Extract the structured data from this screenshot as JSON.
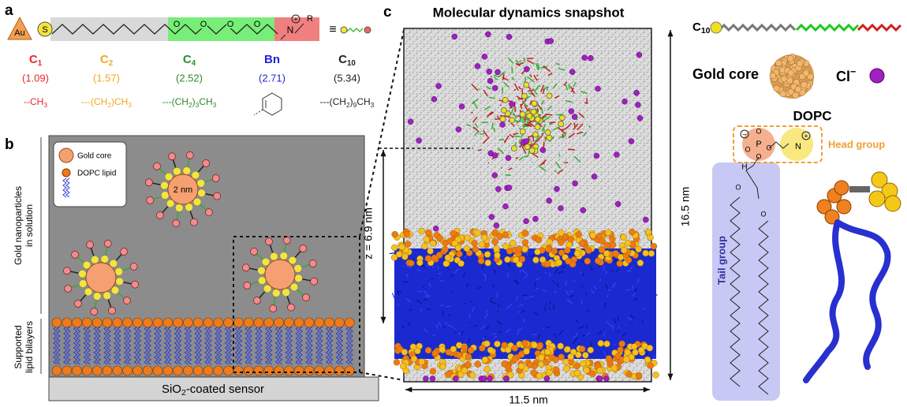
{
  "panel_a": {
    "label": "a",
    "gold": "Au",
    "sulfur": "S",
    "oxygen": "O",
    "nitrogen": "N",
    "charge": "+",
    "r_group": "R",
    "equiv": "≡",
    "ligands": [
      {
        "name": "C",
        "sub": "1",
        "value": "(1.09)",
        "formula": [
          "--CH",
          "3"
        ]
      },
      {
        "name": "C",
        "sub": "2",
        "value": "(1.57)",
        "formula": [
          "---(CH",
          "2",
          ")CH",
          "3"
        ]
      },
      {
        "name": "C",
        "sub": "4",
        "value": "(2.52)",
        "formula": [
          "---(CH",
          "2",
          ")",
          "3",
          "CH",
          "3"
        ]
      },
      {
        "name": "Bn",
        "value": "(2.71)"
      },
      {
        "name": "C",
        "sub": "10",
        "value": "(5.34)",
        "formula": [
          "---(CH",
          "2",
          ")",
          "9",
          "CH",
          "3"
        ]
      }
    ]
  },
  "panel_b": {
    "label": "b",
    "legend": {
      "gold_core": "Gold core",
      "lipid": "DOPC lipid"
    },
    "size": "2 nm",
    "solution_label": [
      "Gold nanoparticles",
      "in solution"
    ],
    "bilayer_label": [
      "Supported",
      "lipid bilayers"
    ],
    "sensor": [
      "SiO",
      "2",
      "-coated sensor"
    ]
  },
  "panel_c": {
    "label": "c",
    "title": "Molecular dynamics snapshot",
    "z_label": "z = 6.9 nm",
    "width_label": "11.5 nm",
    "height_label": "16.5 nm"
  },
  "panel_d": {
    "ligand": [
      "C",
      "10"
    ],
    "gold_core": "Gold core",
    "chloride": [
      "Cl",
      "−"
    ],
    "lipid": "DOPC",
    "head_group": "Head group",
    "tail_group": "Tail group",
    "hydrogen": "H",
    "oxygen": "O",
    "phosphorus": "P",
    "nitrogen": "N",
    "plus": "+",
    "minus": "−"
  }
}
